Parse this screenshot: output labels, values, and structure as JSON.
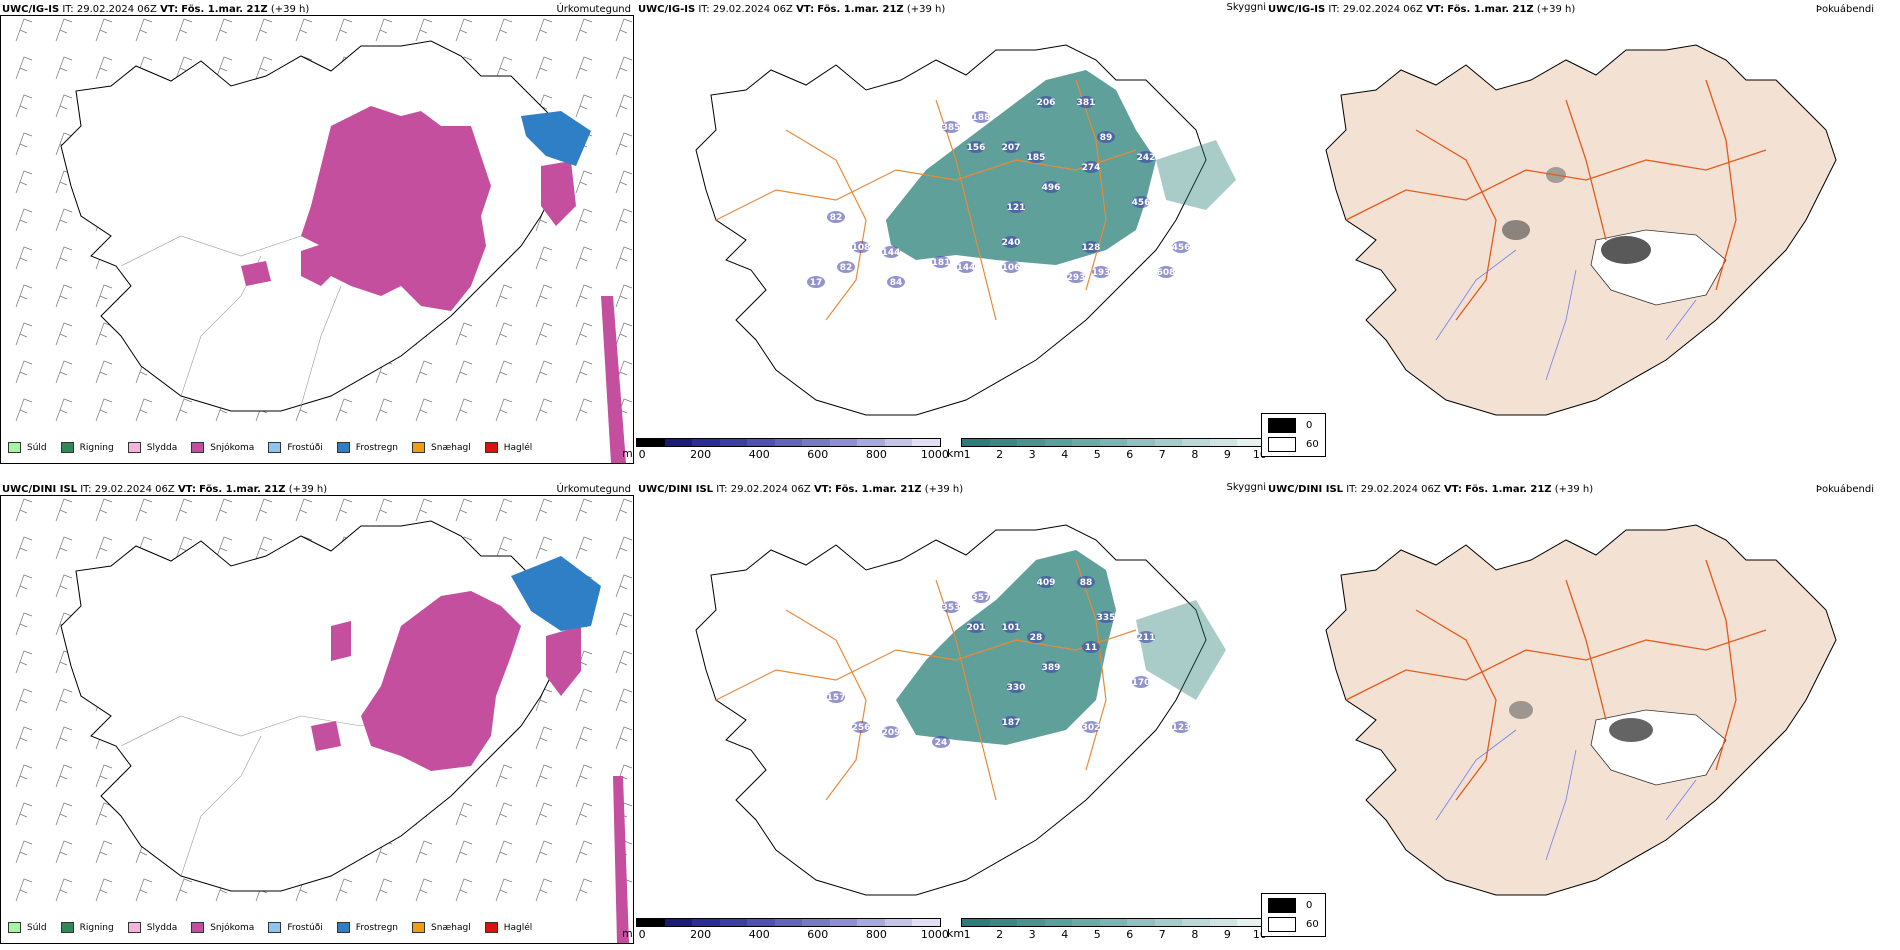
{
  "rows": [
    {
      "model": "UWC/IG-IS",
      "run_label": "IT:",
      "run_value": "29.02.2024 06Z",
      "valid_label": "VT:",
      "valid_value": "Fös. 1.mar. 21Z",
      "lead": "(+39 h)",
      "panels": {
        "precip": "Úrkomutegund",
        "visibility": "Skyggni",
        "fog": "Þokuábendi"
      },
      "visibility_labels": [
        "206",
        "381",
        "89",
        "242",
        "385",
        "188",
        "156",
        "207",
        "185",
        "274",
        "82",
        "496",
        "121",
        "456",
        "240",
        "128",
        "108",
        "456",
        "144",
        "181",
        "144",
        "106",
        "193",
        "293",
        "608",
        "82",
        "84",
        "17"
      ]
    },
    {
      "model": "UWC/DINI ISL",
      "run_label": "IT:",
      "run_value": "29.02.2024 06Z",
      "valid_label": "VT:",
      "valid_value": "Fös. 1.mar. 21Z",
      "lead": "(+39 h)",
      "panels": {
        "precip": "Úrkomutegund",
        "visibility": "Skyggni",
        "fog": "Þokuábendi"
      },
      "visibility_labels": [
        "409",
        "88",
        "335",
        "211",
        "353",
        "357",
        "201",
        "101",
        "28",
        "11",
        "157",
        "389",
        "330",
        "170",
        "187",
        "302",
        "256",
        "123",
        "209",
        "24"
      ]
    }
  ],
  "precip_legend": [
    {
      "label": "Súld",
      "color": "#a6f5a0"
    },
    {
      "label": "Rigning",
      "color": "#2e8b57"
    },
    {
      "label": "Slydda",
      "color": "#f4b6d8"
    },
    {
      "label": "Snjókoma",
      "color": "#c34f9e"
    },
    {
      "label": "Frostúði",
      "color": "#8ec5f0"
    },
    {
      "label": "Frostregn",
      "color": "#2f7fc6"
    },
    {
      "label": "Snæhagl",
      "color": "#f39c12"
    },
    {
      "label": "Haglél",
      "color": "#e01010"
    }
  ],
  "scale_m": {
    "unit": "m",
    "ticks": [
      "0",
      "200",
      "400",
      "600",
      "800",
      "1000"
    ],
    "colors": [
      "#000000",
      "#1a1a7a",
      "#2b2b9a",
      "#3d3da8",
      "#5050b4",
      "#6464bd",
      "#7878c6",
      "#9090d0",
      "#a8a8da",
      "#c4c4e6",
      "#e0e0f2"
    ]
  },
  "scale_km": {
    "unit": "km",
    "ticks": [
      "1",
      "2",
      "3",
      "4",
      "5",
      "6",
      "7",
      "8",
      "9",
      "10"
    ],
    "colors": [
      "#2a7d78",
      "#3a8884",
      "#4b938f",
      "#5c9e9b",
      "#6ea9a6",
      "#80b4b2",
      "#93c0be",
      "#a6ccca",
      "#bad8d6",
      "#cfe4e3",
      "#e6f1f0"
    ]
  },
  "fog_key": [
    {
      "value": "0",
      "color": "#000000"
    },
    {
      "value": "60",
      "color": "#ffffff"
    }
  ],
  "colors": {
    "snow": "#c34f9e",
    "freezing_rain": "#2f7fc6",
    "freezing_drizzle": "#8ec5f0",
    "visibility": "#2a8079",
    "land": "#f3e2d4",
    "roads": "#e35a1c",
    "rivers": "#6b7ff0",
    "coast": "#000000"
  }
}
